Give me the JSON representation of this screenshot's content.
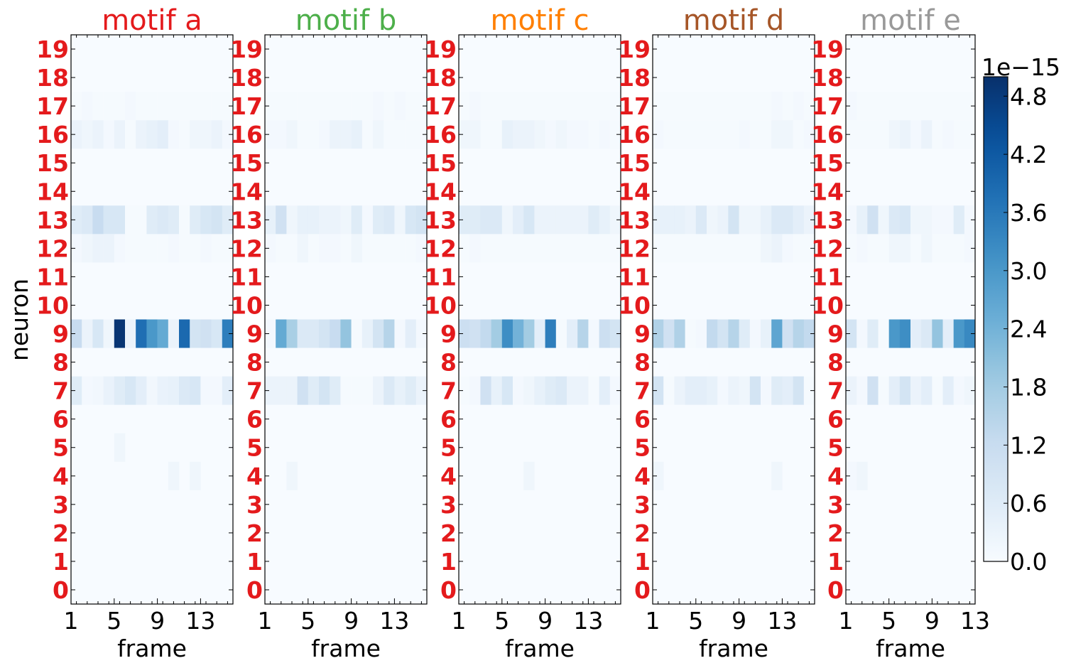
{
  "chart_data": {
    "type": "heatmap",
    "colormap": "Blues",
    "ylabel": "neuron",
    "ytick_color": "#e41a1c",
    "yticks": [
      "0",
      "1",
      "2",
      "3",
      "4",
      "5",
      "6",
      "7",
      "8",
      "9",
      "10",
      "11",
      "12",
      "13",
      "14",
      "15",
      "16",
      "17",
      "18",
      "19"
    ],
    "colorbar": {
      "range": [
        0.0,
        5.0
      ],
      "exponent_label": "1e−15",
      "ticks": [
        "0.0",
        "0.6",
        "1.2",
        "1.8",
        "2.4",
        "3.0",
        "3.6",
        "4.2",
        "4.8"
      ]
    },
    "panels": [
      {
        "title": "motif a",
        "title_color": "#e41a1c",
        "xlabel": "frame",
        "xticks": [
          "1",
          "5",
          "9",
          "13"
        ],
        "frames": 15,
        "rows": {
          "7": [
            0.6,
            0.1,
            0.15,
            0.35,
            0.6,
            0.8,
            0.5,
            0.15,
            0.35,
            0.4,
            0.7,
            0.8,
            0.1,
            0.1,
            0.5
          ],
          "9": [
            1.2,
            0.3,
            0.8,
            0.2,
            4.9,
            0.3,
            3.8,
            3.0,
            2.6,
            0.3,
            3.9,
            0.9,
            1.0,
            0.8,
            3.5
          ],
          "12": [
            0.1,
            0.2,
            0.3,
            0.3,
            0.1,
            0.05,
            0.05,
            0.05,
            0.05,
            0.1,
            0.05,
            0.05,
            0.1,
            0.05,
            0.05
          ],
          "13": [
            0.6,
            0.7,
            1.2,
            0.8,
            0.8,
            0.05,
            0.05,
            0.6,
            0.7,
            0.6,
            0.05,
            0.6,
            0.8,
            0.9,
            0.6
          ],
          "16": [
            0.3,
            0.2,
            0.3,
            0.1,
            0.3,
            0.05,
            0.3,
            0.4,
            0.5,
            0.1,
            0.05,
            0.2,
            0.2,
            0.3,
            0.1
          ],
          "17": [
            0.05,
            0.1,
            0.05,
            0.05,
            0.05,
            0.1,
            0.05,
            0.05,
            0.05,
            0.05,
            0.05,
            0.05,
            0.05,
            0.05,
            0.05
          ],
          "5": [
            0.0,
            0.0,
            0.0,
            0.0,
            0.2,
            0.0,
            0.0,
            0.0,
            0.0,
            0.0,
            0.0,
            0.0,
            0.0,
            0.0,
            0.0
          ],
          "4": [
            0.0,
            0.0,
            0.0,
            0.0,
            0.0,
            0.0,
            0.0,
            0.0,
            0.0,
            0.2,
            0.0,
            0.2,
            0.0,
            0.0,
            0.0
          ]
        }
      },
      {
        "title": "motif b",
        "title_color": "#4daf4a",
        "xlabel": "frame",
        "xticks": [
          "1",
          "5",
          "9",
          "13"
        ],
        "frames": 15,
        "rows": {
          "7": [
            0.3,
            0.3,
            0.3,
            1.0,
            0.6,
            0.9,
            0.6,
            0.05,
            0.05,
            0.05,
            0.3,
            0.7,
            0.4,
            0.6,
            0.3
          ],
          "9": [
            0.1,
            2.6,
            1.7,
            0.7,
            0.7,
            0.9,
            1.2,
            2.0,
            0.05,
            0.4,
            0.9,
            1.5,
            0.1,
            0.5,
            0.1
          ],
          "12": [
            0.1,
            0.05,
            0.05,
            0.2,
            0.05,
            0.1,
            0.1,
            0.05,
            0.2,
            0.05,
            0.05,
            0.05,
            0.05,
            0.05,
            0.1
          ],
          "13": [
            0.4,
            1.0,
            0.2,
            0.4,
            0.4,
            0.3,
            0.3,
            0.2,
            0.6,
            0.1,
            0.6,
            0.7,
            0.2,
            0.8,
            0.9
          ],
          "16": [
            0.1,
            0.1,
            0.2,
            0.05,
            0.05,
            0.1,
            0.3,
            0.3,
            0.4,
            0.05,
            0.2,
            0.05,
            0.05,
            0.05,
            0.05
          ],
          "17": [
            0.05,
            0.05,
            0.05,
            0.05,
            0.05,
            0.05,
            0.05,
            0.05,
            0.05,
            0.05,
            0.1,
            0.05,
            0.1,
            0.05,
            0.05
          ],
          "4": [
            0.0,
            0.0,
            0.2,
            0.0,
            0.0,
            0.0,
            0.0,
            0.0,
            0.0,
            0.0,
            0.0,
            0.0,
            0.0,
            0.0,
            0.0
          ]
        }
      },
      {
        "title": "motif c",
        "title_color": "#ff7f00",
        "xlabel": "frame",
        "xticks": [
          "1",
          "5",
          "9",
          "13"
        ],
        "frames": 15,
        "rows": {
          "7": [
            0.05,
            0.1,
            1.0,
            0.4,
            0.8,
            0.1,
            0.2,
            0.4,
            0.6,
            0.7,
            0.3,
            0.3,
            0.05,
            0.5,
            0.1
          ],
          "9": [
            1.1,
            1.0,
            1.3,
            1.8,
            3.2,
            2.4,
            1.8,
            0.5,
            3.5,
            0.05,
            0.5,
            1.5,
            0.1,
            1.1,
            0.9
          ],
          "12": [
            0.05,
            0.1,
            0.05,
            0.05,
            0.05,
            0.05,
            0.05,
            0.05,
            0.05,
            0.05,
            0.05,
            0.05,
            0.05,
            0.05,
            0.05
          ],
          "13": [
            0.6,
            0.6,
            0.7,
            0.7,
            0.2,
            0.5,
            0.8,
            0.3,
            0.3,
            0.3,
            0.3,
            0.3,
            0.6,
            0.4,
            0.2
          ],
          "16": [
            0.2,
            0.2,
            0.05,
            0.05,
            0.4,
            0.3,
            0.3,
            0.2,
            0.1,
            0.2,
            0.1,
            0.1,
            0.05,
            0.1,
            0.05
          ],
          "17": [
            0.05,
            0.1,
            0.05,
            0.05,
            0.05,
            0.05,
            0.05,
            0.05,
            0.05,
            0.05,
            0.05,
            0.05,
            0.05,
            0.05,
            0.05
          ],
          "4": [
            0.0,
            0.0,
            0.0,
            0.0,
            0.0,
            0.0,
            0.2,
            0.0,
            0.0,
            0.0,
            0.0,
            0.0,
            0.0,
            0.0,
            0.0
          ]
        }
      },
      {
        "title": "motif d",
        "title_color": "#a65628",
        "xlabel": "frame",
        "xticks": [
          "1",
          "5",
          "9",
          "13"
        ],
        "frames": 15,
        "rows": {
          "7": [
            0.9,
            0.05,
            0.3,
            0.5,
            0.5,
            0.4,
            0.1,
            0.3,
            0.2,
            0.9,
            0.1,
            0.6,
            0.5,
            0.9,
            0.05
          ],
          "9": [
            1.6,
            1.0,
            1.6,
            0.05,
            0.1,
            1.3,
            0.9,
            1.5,
            0.6,
            0.1,
            0.4,
            2.7,
            1.0,
            1.5,
            1.3
          ],
          "12": [
            0.05,
            0.05,
            0.05,
            0.05,
            0.05,
            0.05,
            0.05,
            0.05,
            0.05,
            0.05,
            0.2,
            0.3,
            0.1,
            0.05,
            0.05
          ],
          "13": [
            0.4,
            0.4,
            0.4,
            0.3,
            0.7,
            0.2,
            0.3,
            0.9,
            0.2,
            0.2,
            0.4,
            0.7,
            0.7,
            0.5,
            0.3
          ],
          "16": [
            0.1,
            0.05,
            0.05,
            0.05,
            0.05,
            0.05,
            0.05,
            0.05,
            0.1,
            0.05,
            0.05,
            0.2,
            0.2,
            0.05,
            0.1
          ],
          "17": [
            0.05,
            0.05,
            0.05,
            0.05,
            0.05,
            0.05,
            0.05,
            0.05,
            0.05,
            0.05,
            0.05,
            0.1,
            0.05,
            0.1,
            0.05
          ],
          "4": [
            0.2,
            0.0,
            0.0,
            0.0,
            0.0,
            0.0,
            0.0,
            0.0,
            0.0,
            0.0,
            0.0,
            0.2,
            0.0,
            0.0,
            0.0
          ]
        }
      },
      {
        "title": "motif e",
        "title_color": "#999999",
        "xlabel": "frame",
        "xticks": [
          "1",
          "5",
          "9",
          "13"
        ],
        "frames": 12,
        "rows": {
          "7": [
            0.3,
            0.1,
            1.0,
            0.05,
            0.5,
            0.9,
            0.3,
            0.5,
            0.05,
            0.5,
            0.1,
            0.2
          ],
          "9": [
            0.9,
            0.1,
            0.6,
            0.05,
            3.0,
            3.2,
            0.5,
            0.7,
            2.0,
            0.5,
            3.0,
            3.3
          ],
          "12": [
            0.05,
            0.1,
            0.05,
            0.05,
            0.2,
            0.2,
            0.05,
            0.2,
            0.05,
            0.05,
            0.05,
            0.1
          ],
          "13": [
            0.1,
            0.4,
            1.0,
            0.2,
            0.7,
            0.8,
            0.2,
            0.2,
            0.1,
            0.1,
            0.6,
            0.1
          ],
          "16": [
            0.05,
            0.05,
            0.05,
            0.05,
            0.2,
            0.3,
            0.1,
            0.3,
            0.05,
            0.1,
            0.05,
            0.05
          ],
          "17": [
            0.1,
            0.05,
            0.05,
            0.05,
            0.05,
            0.05,
            0.05,
            0.05,
            0.05,
            0.05,
            0.05,
            0.05
          ],
          "4": [
            0.1,
            0.2,
            0.0,
            0.0,
            0.0,
            0.0,
            0.0,
            0.0,
            0.0,
            0.0,
            0.0,
            0.0
          ]
        }
      }
    ]
  }
}
